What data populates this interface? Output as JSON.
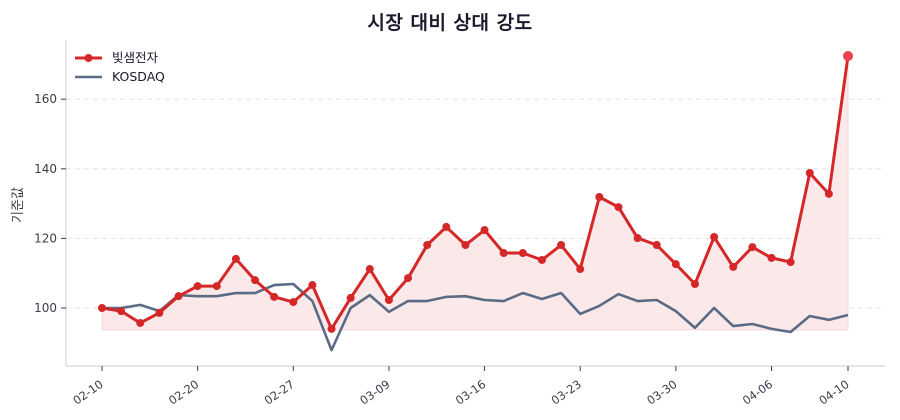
{
  "chart_data": {
    "type": "line",
    "title": "시장 대비 상대 강도",
    "xlabel": "",
    "ylabel": "기준값",
    "ylim": [
      84,
      176
    ],
    "yticks": [
      100,
      120,
      140,
      160
    ],
    "grid": {
      "y": true,
      "x": false,
      "style": "dashed"
    },
    "legend": {
      "position": "upper left",
      "entries": [
        "빛샘전자",
        "KOSDAQ"
      ]
    },
    "xtick_labels": [
      "02-10",
      "02-20",
      "02-27",
      "03-09",
      "03-16",
      "03-23",
      "03-30",
      "04-06",
      "04-10"
    ],
    "xtick_indices": [
      0,
      5,
      10,
      15,
      20,
      25,
      30,
      35,
      39
    ],
    "fill_baseline": 93.7,
    "series": [
      {
        "name": "빛샘전자",
        "color": "#d62728",
        "marker": "circle",
        "fill": true,
        "fill_color": "#fbe9e9",
        "values": [
          100,
          99.1,
          95.7,
          98.6,
          103.4,
          106.3,
          106.3,
          114.1,
          108,
          103.2,
          101.7,
          106.6,
          94,
          102.9,
          111.2,
          102.3,
          108.6,
          118.1,
          123.3,
          118.1,
          122.4,
          115.8,
          115.8,
          113.8,
          118.1,
          111.2,
          131.9,
          129,
          120.1,
          118.1,
          112.6,
          106.9,
          120.4,
          111.8,
          117.5,
          114.4,
          113.2,
          138.8,
          132.8,
          172.4
        ]
      },
      {
        "name": "KOSDAQ",
        "color": "#5a6b85",
        "marker": "none",
        "fill": false,
        "values": [
          100,
          100,
          100.9,
          99.1,
          103.7,
          103.4,
          103.4,
          104.3,
          104.3,
          106.6,
          106.9,
          102,
          87.9,
          100,
          103.7,
          98.9,
          102,
          102,
          103.2,
          103.4,
          102.3,
          102,
          104.3,
          102.6,
          104.3,
          98.3,
          100.6,
          104,
          102,
          102.3,
          99.1,
          94.3,
          100,
          94.8,
          95.4,
          94,
          93.1,
          97.7,
          96.6,
          98
        ]
      }
    ]
  }
}
